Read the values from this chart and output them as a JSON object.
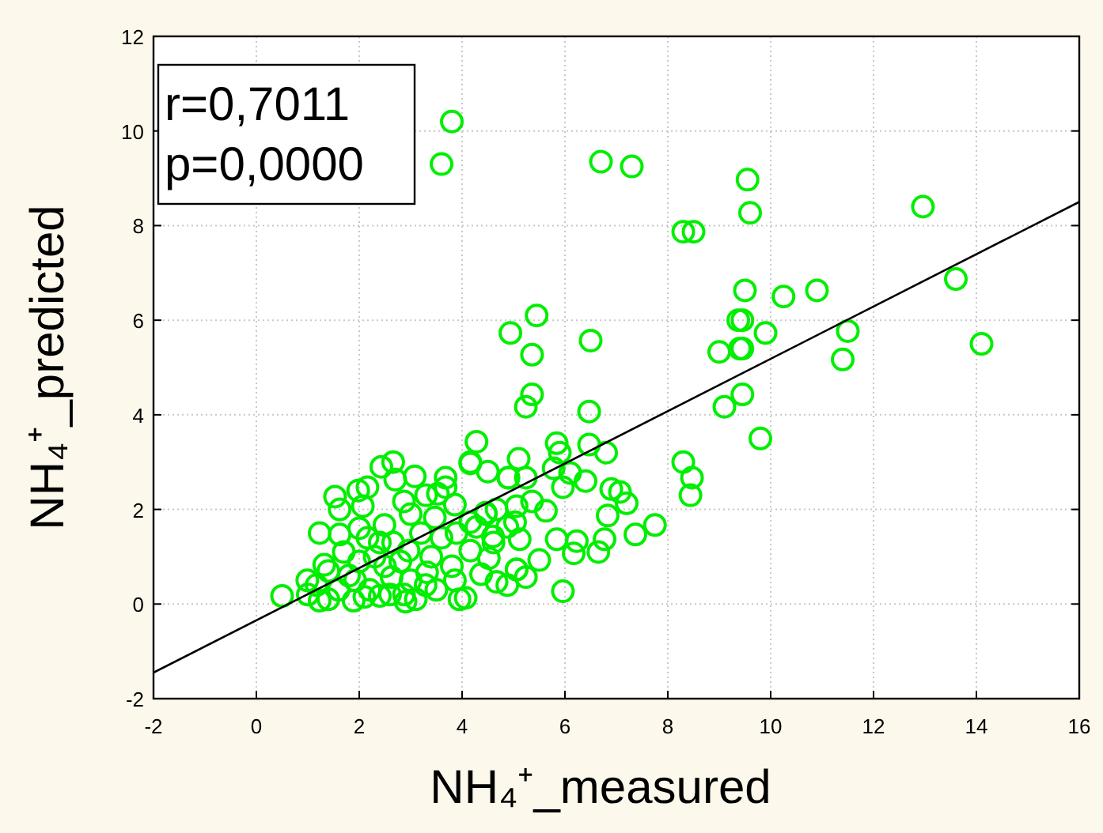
{
  "chart_data": {
    "type": "scatter",
    "xlabel": "NH₄⁺_measured",
    "ylabel": "NH₄⁺_predicted",
    "xlim": [
      -2,
      16
    ],
    "ylim": [
      -2,
      12
    ],
    "xticks": [
      -2,
      0,
      2,
      4,
      6,
      8,
      10,
      12,
      14,
      16
    ],
    "yticks": [
      -2,
      0,
      2,
      4,
      6,
      8,
      10,
      12
    ],
    "grid": true,
    "annotations": [
      "r=0,7011",
      "p=0,0000"
    ],
    "series": [
      {
        "color": "#00ee00",
        "marker": "circle",
        "x": [
          3.6,
          3.8,
          6.7,
          7.3,
          8.3,
          8.5,
          9.55,
          9.6,
          12.96,
          13.6,
          14.1,
          10.25,
          10.9,
          9.9,
          11.5,
          11.4,
          9.8,
          9.5,
          9.45,
          9.45,
          9.45,
          9.37,
          9.0,
          9.4,
          9.1,
          5.45,
          4.94,
          5.36,
          6.5,
          5.36,
          5.24,
          6.47,
          4.28,
          4.16,
          5.84,
          5.9,
          6.47,
          6.8,
          8.3,
          8.47,
          8.44,
          4.5,
          4.9,
          5.1,
          5.24,
          5.78,
          6.1,
          6.4,
          5.96,
          6.9,
          7.07,
          7.2,
          6.83,
          7.75,
          7.37,
          6.77,
          6.65,
          6.17,
          6.23,
          5.84,
          5.5,
          5.06,
          5.24,
          5.96,
          5.63,
          5.36,
          5.06,
          4.67,
          4.46,
          4.88,
          5.12,
          4.6,
          4.28,
          4.16,
          4.52,
          4.37,
          4.67,
          4.88,
          4.07,
          0.5,
          0.99,
          1.17,
          1.32,
          1.23,
          1.62,
          1.53,
          1.62,
          1.98,
          2.16,
          2.07,
          2.16,
          2.43,
          2.66,
          2.7,
          3.08,
          2.87,
          2.49,
          2.66,
          2.96,
          1.92,
          1.23,
          1.89,
          2.4,
          2.63,
          2.87,
          3.32,
          3.29,
          3.47,
          3.53,
          3.68,
          3.68,
          3.86,
          3.89,
          3.95,
          3.86,
          4.16,
          4.46,
          4.16,
          4.9,
          5.03,
          4.61,
          5.06,
          1.0,
          1.4,
          1.6,
          1.8,
          2.0,
          2.2,
          2.3,
          2.5,
          2.6,
          2.8,
          3.0,
          3.1,
          3.2,
          3.4,
          3.5,
          3.6,
          3.8,
          2.0,
          1.7,
          2.4,
          3.0,
          3.3,
          1.4,
          2.9,
          2.1
        ],
        "values": [
          9.3,
          10.2,
          9.35,
          9.25,
          7.87,
          7.87,
          8.97,
          8.27,
          8.4,
          6.87,
          5.5,
          6.5,
          6.63,
          5.73,
          5.77,
          5.17,
          3.5,
          6.63,
          6.0,
          5.4,
          4.43,
          6.0,
          5.33,
          5.4,
          4.17,
          6.1,
          5.73,
          5.27,
          5.57,
          4.43,
          4.17,
          4.07,
          3.43,
          2.97,
          3.4,
          3.2,
          3.37,
          3.2,
          3.0,
          2.67,
          2.3,
          2.8,
          2.67,
          3.07,
          2.67,
          2.87,
          2.77,
          2.6,
          2.47,
          2.43,
          2.37,
          2.13,
          1.87,
          1.67,
          1.47,
          1.37,
          1.1,
          1.07,
          1.33,
          1.37,
          0.93,
          0.73,
          0.57,
          0.27,
          1.97,
          2.17,
          2.07,
          2.0,
          1.93,
          1.63,
          1.37,
          1.43,
          1.63,
          1.13,
          0.97,
          0.63,
          0.47,
          0.4,
          0.13,
          0.17,
          0.5,
          0.4,
          0.83,
          1.5,
          1.47,
          2.27,
          2.0,
          2.4,
          2.47,
          2.07,
          1.4,
          2.9,
          3.0,
          2.63,
          2.7,
          2.17,
          1.67,
          1.3,
          1.13,
          0.5,
          0.07,
          0.07,
          0.17,
          0.57,
          0.2,
          0.67,
          0.4,
          1.83,
          2.33,
          2.47,
          2.67,
          2.1,
          1.5,
          0.1,
          0.5,
          1.73,
          1.9,
          3.0,
          2.67,
          1.73,
          1.3,
          0.73,
          0.2,
          0.1,
          0.3,
          0.6,
          0.9,
          0.3,
          1.0,
          0.8,
          0.2,
          0.9,
          0.5,
          0.1,
          1.5,
          1.0,
          0.3,
          1.4,
          0.8,
          1.6,
          1.1,
          1.3,
          1.9,
          2.3,
          0.7,
          0.05,
          0.15
        ]
      },
      {
        "type": "line",
        "color": "#000000",
        "x": [
          -2,
          16
        ],
        "values": [
          -1.45,
          8.5
        ]
      }
    ]
  }
}
